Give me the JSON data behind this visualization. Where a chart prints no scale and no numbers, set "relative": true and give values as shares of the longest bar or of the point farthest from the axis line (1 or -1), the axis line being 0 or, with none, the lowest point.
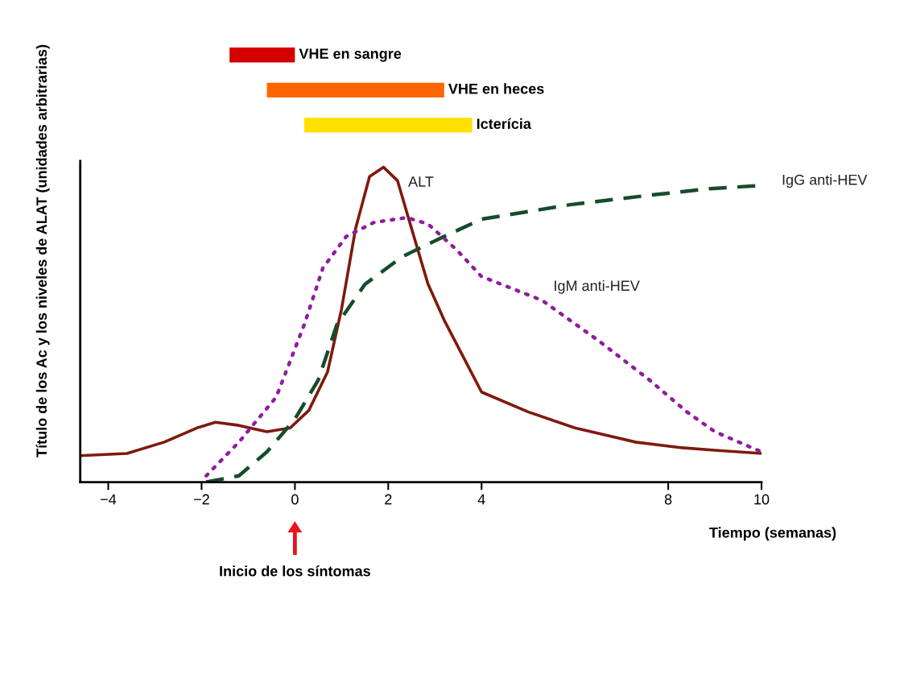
{
  "chart_data": [
    {
      "type": "bar",
      "orientation": "horizontal",
      "categories": [
        "VHE en sangre",
        "VHE en heces",
        "Icterícia"
      ],
      "base": [
        -1.4,
        -0.6,
        0.2
      ],
      "values": [
        1.4,
        3.8,
        3.6
      ],
      "colors": [
        "#d40000",
        "#ff6600",
        "#ffe100"
      ],
      "xticks": [
        -4,
        -2,
        0,
        2,
        4,
        8,
        10
      ],
      "tick_labels": false
    },
    {
      "type": "line",
      "relative": true,
      "xlabel": "Tiempo (semanas)",
      "ylabel": "Título de los Ac y los niveles de ALAT (unidades arbitrarias)",
      "xlim": [
        -4.6,
        10
      ],
      "xticks": [
        {
          "value": -4,
          "label": "−4"
        },
        {
          "value": -2,
          "label": "−2"
        },
        0,
        2,
        4,
        8,
        10
      ],
      "tick_labels": "x",
      "grid": false,
      "legend": false,
      "annotations": [
        "Inicio de los síntomas"
      ],
      "series": [
        {
          "name": "ALT",
          "color": "#7f1a0e",
          "line_style": "solid",
          "x": [
            -4.6,
            -3.6,
            -2.8,
            -2.1,
            -1.7,
            -1.2,
            -0.6,
            -0.1,
            0.3,
            0.7,
            1.0,
            1.3,
            1.6,
            1.9,
            2.2,
            2.55,
            2.85,
            3.2,
            3.6,
            4.0,
            5.0,
            6.0,
            7.3,
            8.3,
            9.0,
            10
          ],
          "values": [
            0.084,
            0.091,
            0.127,
            0.172,
            0.19,
            0.18,
            0.16,
            0.172,
            0.228,
            0.35,
            0.55,
            0.805,
            0.97,
            1.0,
            0.957,
            0.78,
            0.63,
            0.514,
            0.4,
            0.286,
            0.223,
            0.172,
            0.127,
            0.109,
            0.101,
            0.091
          ]
        },
        {
          "name": "IgG anti-HEV",
          "color": "#154d2a",
          "line_style": "dashed",
          "x": [
            -1.9,
            -1.2,
            -0.6,
            0.0,
            0.5,
            0.9,
            1.5,
            2.3,
            3.2,
            4.0,
            5.9,
            7.6,
            8.9,
            10
          ],
          "values": [
            0.0,
            0.02,
            0.096,
            0.2,
            0.324,
            0.5,
            0.628,
            0.716,
            0.78,
            0.835,
            0.881,
            0.911,
            0.932,
            0.942
          ]
        },
        {
          "name": "IgM anti-HEV",
          "color": "#8e1e9e",
          "line_style": "dotted",
          "x": [
            -1.9,
            -1.2,
            -0.4,
            0.2,
            0.6,
            1.1,
            1.7,
            2.4,
            2.85,
            3.45,
            4.0,
            5.3,
            6.5,
            7.6,
            8.4,
            9.0,
            10
          ],
          "values": [
            0.02,
            0.127,
            0.27,
            0.5,
            0.68,
            0.78,
            0.825,
            0.84,
            0.82,
            0.74,
            0.653,
            0.577,
            0.45,
            0.324,
            0.223,
            0.16,
            0.096
          ]
        }
      ]
    }
  ]
}
